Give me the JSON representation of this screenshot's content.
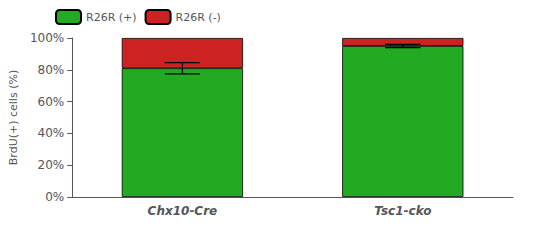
{
  "chart_data": {
    "type": "bar",
    "stacked": true,
    "ylabel": "BrdU(+) cells (%)",
    "categories": [
      "Chx10-Cre",
      "Tsc1-cko"
    ],
    "series": [
      {
        "name": "R26R (+)",
        "color": "#22aa22",
        "values": [
          81,
          95
        ],
        "errors": [
          3.5,
          1.0
        ]
      },
      {
        "name": "R26R (-)",
        "color": "#cc2222",
        "values": [
          19,
          5
        ]
      }
    ],
    "ylim": [
      0,
      100
    ],
    "yticks": [
      {
        "value": 0,
        "label": "0%"
      },
      {
        "value": 20,
        "label": "20%"
      },
      {
        "value": 40,
        "label": "40%"
      },
      {
        "value": 60,
        "label": "60%"
      },
      {
        "value": 80,
        "label": "80%"
      },
      {
        "value": 100,
        "label": "100%"
      }
    ],
    "grid": false,
    "legend": "upper left"
  }
}
